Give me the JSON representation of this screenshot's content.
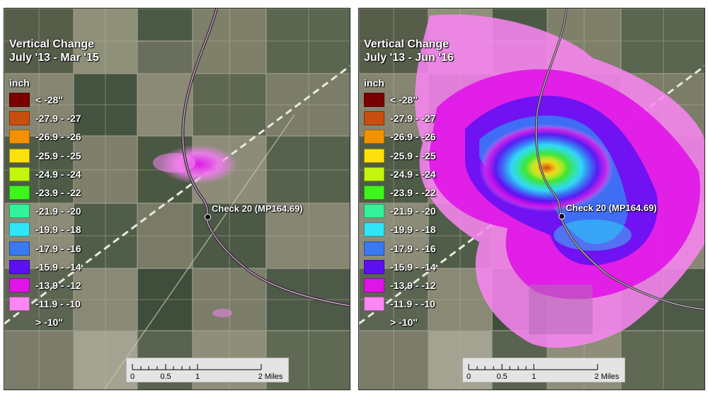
{
  "panels": [
    {
      "title_line1": "Vertical Change",
      "title_line2": "July '13 - Mar '15",
      "unit": "inch",
      "station_label": "Check 20 (MP164.69)"
    },
    {
      "title_line1": "Vertical Change",
      "title_line2": "July '13 - Jun '16",
      "unit": "inch",
      "station_label": "Check 20 (MP164.69)"
    }
  ],
  "legend": [
    {
      "label": "< -28\"",
      "color": "#7b0000"
    },
    {
      "label": "-27.9 - -27",
      "color": "#c84f10"
    },
    {
      "label": "-26.9 - -26",
      "color": "#f39200"
    },
    {
      "label": "-25.9 - -25",
      "color": "#fde10d"
    },
    {
      "label": "-24.9 - -24",
      "color": "#c3f50f"
    },
    {
      "label": "-23.9 - -22",
      "color": "#3ef51c"
    },
    {
      "label": "-21.9 - -20",
      "color": "#33f29a"
    },
    {
      "label": "-19.9 - -18",
      "color": "#2fe6f7"
    },
    {
      "label": "-17.9 - -16",
      "color": "#3a78f4"
    },
    {
      "label": "-15.9 - -14",
      "color": "#5c10f2"
    },
    {
      "label": "-13.9 - -12",
      "color": "#e014e8"
    },
    {
      "label": "-11.9 - -10",
      "color": "#fb86f4"
    },
    {
      "label": "> -10\"",
      "color": ""
    }
  ],
  "scalebar": {
    "labels": [
      "0",
      "0.5",
      "1",
      "2 Miles"
    ]
  }
}
